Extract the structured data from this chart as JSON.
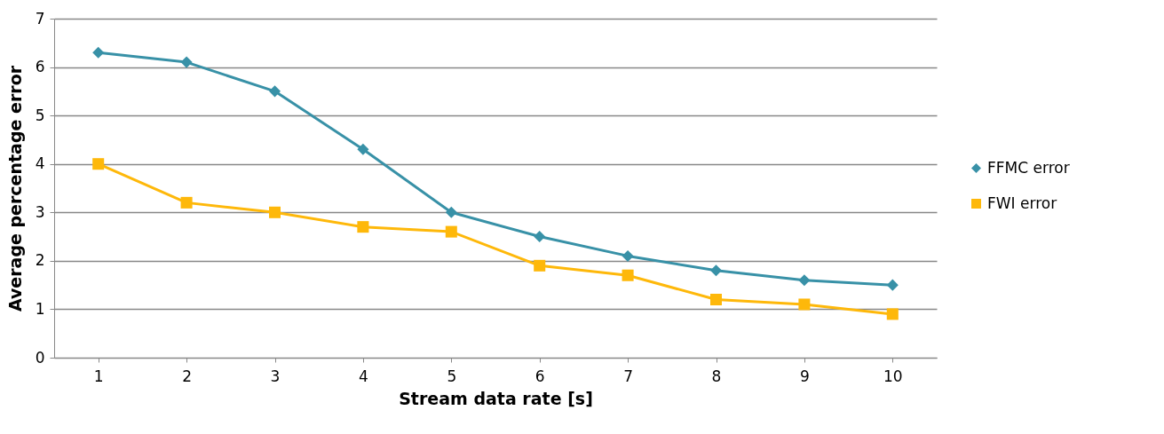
{
  "chart_data": {
    "type": "line",
    "xlabel": "Stream data rate [s]",
    "ylabel": "Average percentage error",
    "categories": [
      "1",
      "2",
      "3",
      "4",
      "5",
      "6",
      "7",
      "8",
      "9",
      "10"
    ],
    "series": [
      {
        "name": "FFMC error",
        "color": "#3891a7",
        "marker": "diamond",
        "values": [
          6.3,
          6.1,
          5.5,
          4.3,
          3.0,
          2.5,
          2.1,
          1.8,
          1.6,
          1.5
        ]
      },
      {
        "name": "FWI error",
        "color": "#feb80a",
        "marker": "square",
        "values": [
          4.0,
          3.2,
          3.0,
          2.7,
          2.6,
          1.9,
          1.7,
          1.2,
          1.1,
          0.9
        ]
      }
    ],
    "ylim": [
      0,
      7
    ],
    "yticks": [
      0,
      1,
      2,
      3,
      4,
      5,
      6,
      7
    ],
    "grid": "y",
    "legend": "right",
    "line_style": "solid"
  }
}
